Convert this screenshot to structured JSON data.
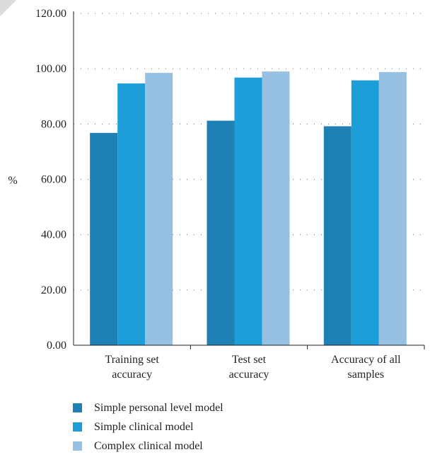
{
  "chart_data": {
    "type": "bar",
    "ylabel": "%",
    "ylim": [
      0,
      120
    ],
    "yticks": [
      "0.00",
      "20.00",
      "40.00",
      "60.00",
      "80.00",
      "100.00",
      "120.00"
    ],
    "grid": true,
    "legend_position": "bottom",
    "categories": [
      [
        "Training set",
        "accuracy"
      ],
      [
        "Test set",
        "accuracy"
      ],
      [
        "Accuracy of all",
        "samples"
      ]
    ],
    "series": [
      {
        "name": "Simple personal level model",
        "color": "#1f80b4",
        "values": [
          76.8,
          81.2,
          79.2
        ]
      },
      {
        "name": "Simple clinical model",
        "color": "#1d9ed9",
        "values": [
          94.7,
          96.8,
          95.8
        ]
      },
      {
        "name": "Complex clinical model",
        "color": "#97c1e3",
        "values": [
          98.5,
          99.0,
          98.8
        ]
      }
    ]
  }
}
